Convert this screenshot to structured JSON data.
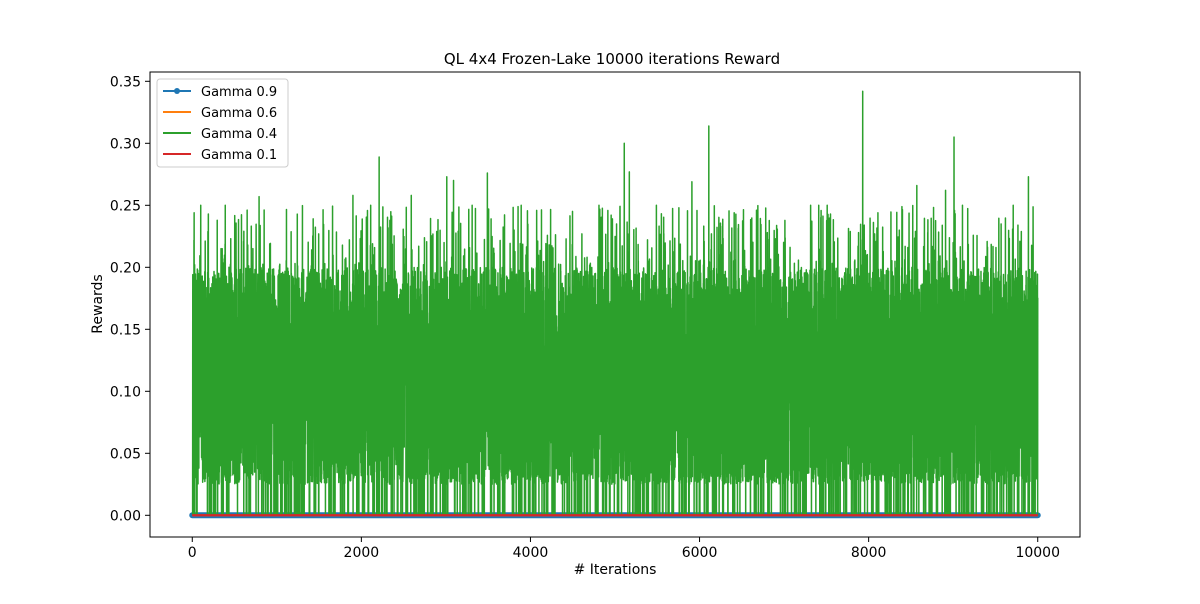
{
  "chart_data": {
    "type": "line",
    "title": "QL 4x4 Frozen-Lake 10000 iterations  Reward",
    "xlabel": "# Iterations",
    "ylabel": "Rewards",
    "xlim": [
      -500,
      10500
    ],
    "ylim": [
      -0.0175,
      0.3575
    ],
    "x_ticks": [
      0,
      2000,
      4000,
      6000,
      8000,
      10000
    ],
    "x_tick_labels": [
      "0",
      "2000",
      "4000",
      "6000",
      "8000",
      "10000"
    ],
    "y_ticks": [
      0.0,
      0.05,
      0.1,
      0.15,
      0.2,
      0.25,
      0.3,
      0.35
    ],
    "y_tick_labels": [
      "0.00",
      "0.05",
      "0.10",
      "0.15",
      "0.20",
      "0.25",
      "0.30",
      "0.35"
    ],
    "grid": false,
    "legend_position": "top-left",
    "x_range": [
      0,
      10000
    ],
    "n_points": 10000,
    "series": [
      {
        "name": "Gamma 0.9",
        "color": "#1f77b4",
        "marker": "circle",
        "constant_value": 0.0,
        "description_values": "all zero"
      },
      {
        "name": "Gamma 0.6",
        "color": "#ff7f0e",
        "marker": "none",
        "constant_value": 0.0,
        "description_values": "all zero"
      },
      {
        "name": "Gamma 0.4",
        "color": "#2ca02c",
        "marker": "none",
        "value_band": {
          "min": 0.0,
          "typical_low": 0.025,
          "typical_high": 0.2,
          "max": 0.342
        },
        "peaks": [
          {
            "x": 20,
            "y": 0.222
          },
          {
            "x": 100,
            "y": 0.25
          },
          {
            "x": 190,
            "y": 0.243
          },
          {
            "x": 390,
            "y": 0.25
          },
          {
            "x": 790,
            "y": 0.257
          },
          {
            "x": 1900,
            "y": 0.258
          },
          {
            "x": 2010,
            "y": 0.239
          },
          {
            "x": 2110,
            "y": 0.25
          },
          {
            "x": 2210,
            "y": 0.289
          },
          {
            "x": 2590,
            "y": 0.258
          },
          {
            "x": 3010,
            "y": 0.273
          },
          {
            "x": 3090,
            "y": 0.27
          },
          {
            "x": 3310,
            "y": 0.25
          },
          {
            "x": 3490,
            "y": 0.276
          },
          {
            "x": 3890,
            "y": 0.25
          },
          {
            "x": 4810,
            "y": 0.25
          },
          {
            "x": 5110,
            "y": 0.3
          },
          {
            "x": 5170,
            "y": 0.277
          },
          {
            "x": 5490,
            "y": 0.25
          },
          {
            "x": 5910,
            "y": 0.269
          },
          {
            "x": 6110,
            "y": 0.314
          },
          {
            "x": 6410,
            "y": 0.244
          },
          {
            "x": 7410,
            "y": 0.25
          },
          {
            "x": 7930,
            "y": 0.342
          },
          {
            "x": 8110,
            "y": 0.244
          },
          {
            "x": 8570,
            "y": 0.266
          },
          {
            "x": 8910,
            "y": 0.262
          },
          {
            "x": 9010,
            "y": 0.305
          },
          {
            "x": 9110,
            "y": 0.25
          },
          {
            "x": 9710,
            "y": 0.25
          },
          {
            "x": 9890,
            "y": 0.273
          }
        ]
      },
      {
        "name": "Gamma 0.1",
        "color": "#d62728",
        "marker": "none",
        "constant_value": 0.0,
        "description_values": "all zero"
      }
    ]
  }
}
